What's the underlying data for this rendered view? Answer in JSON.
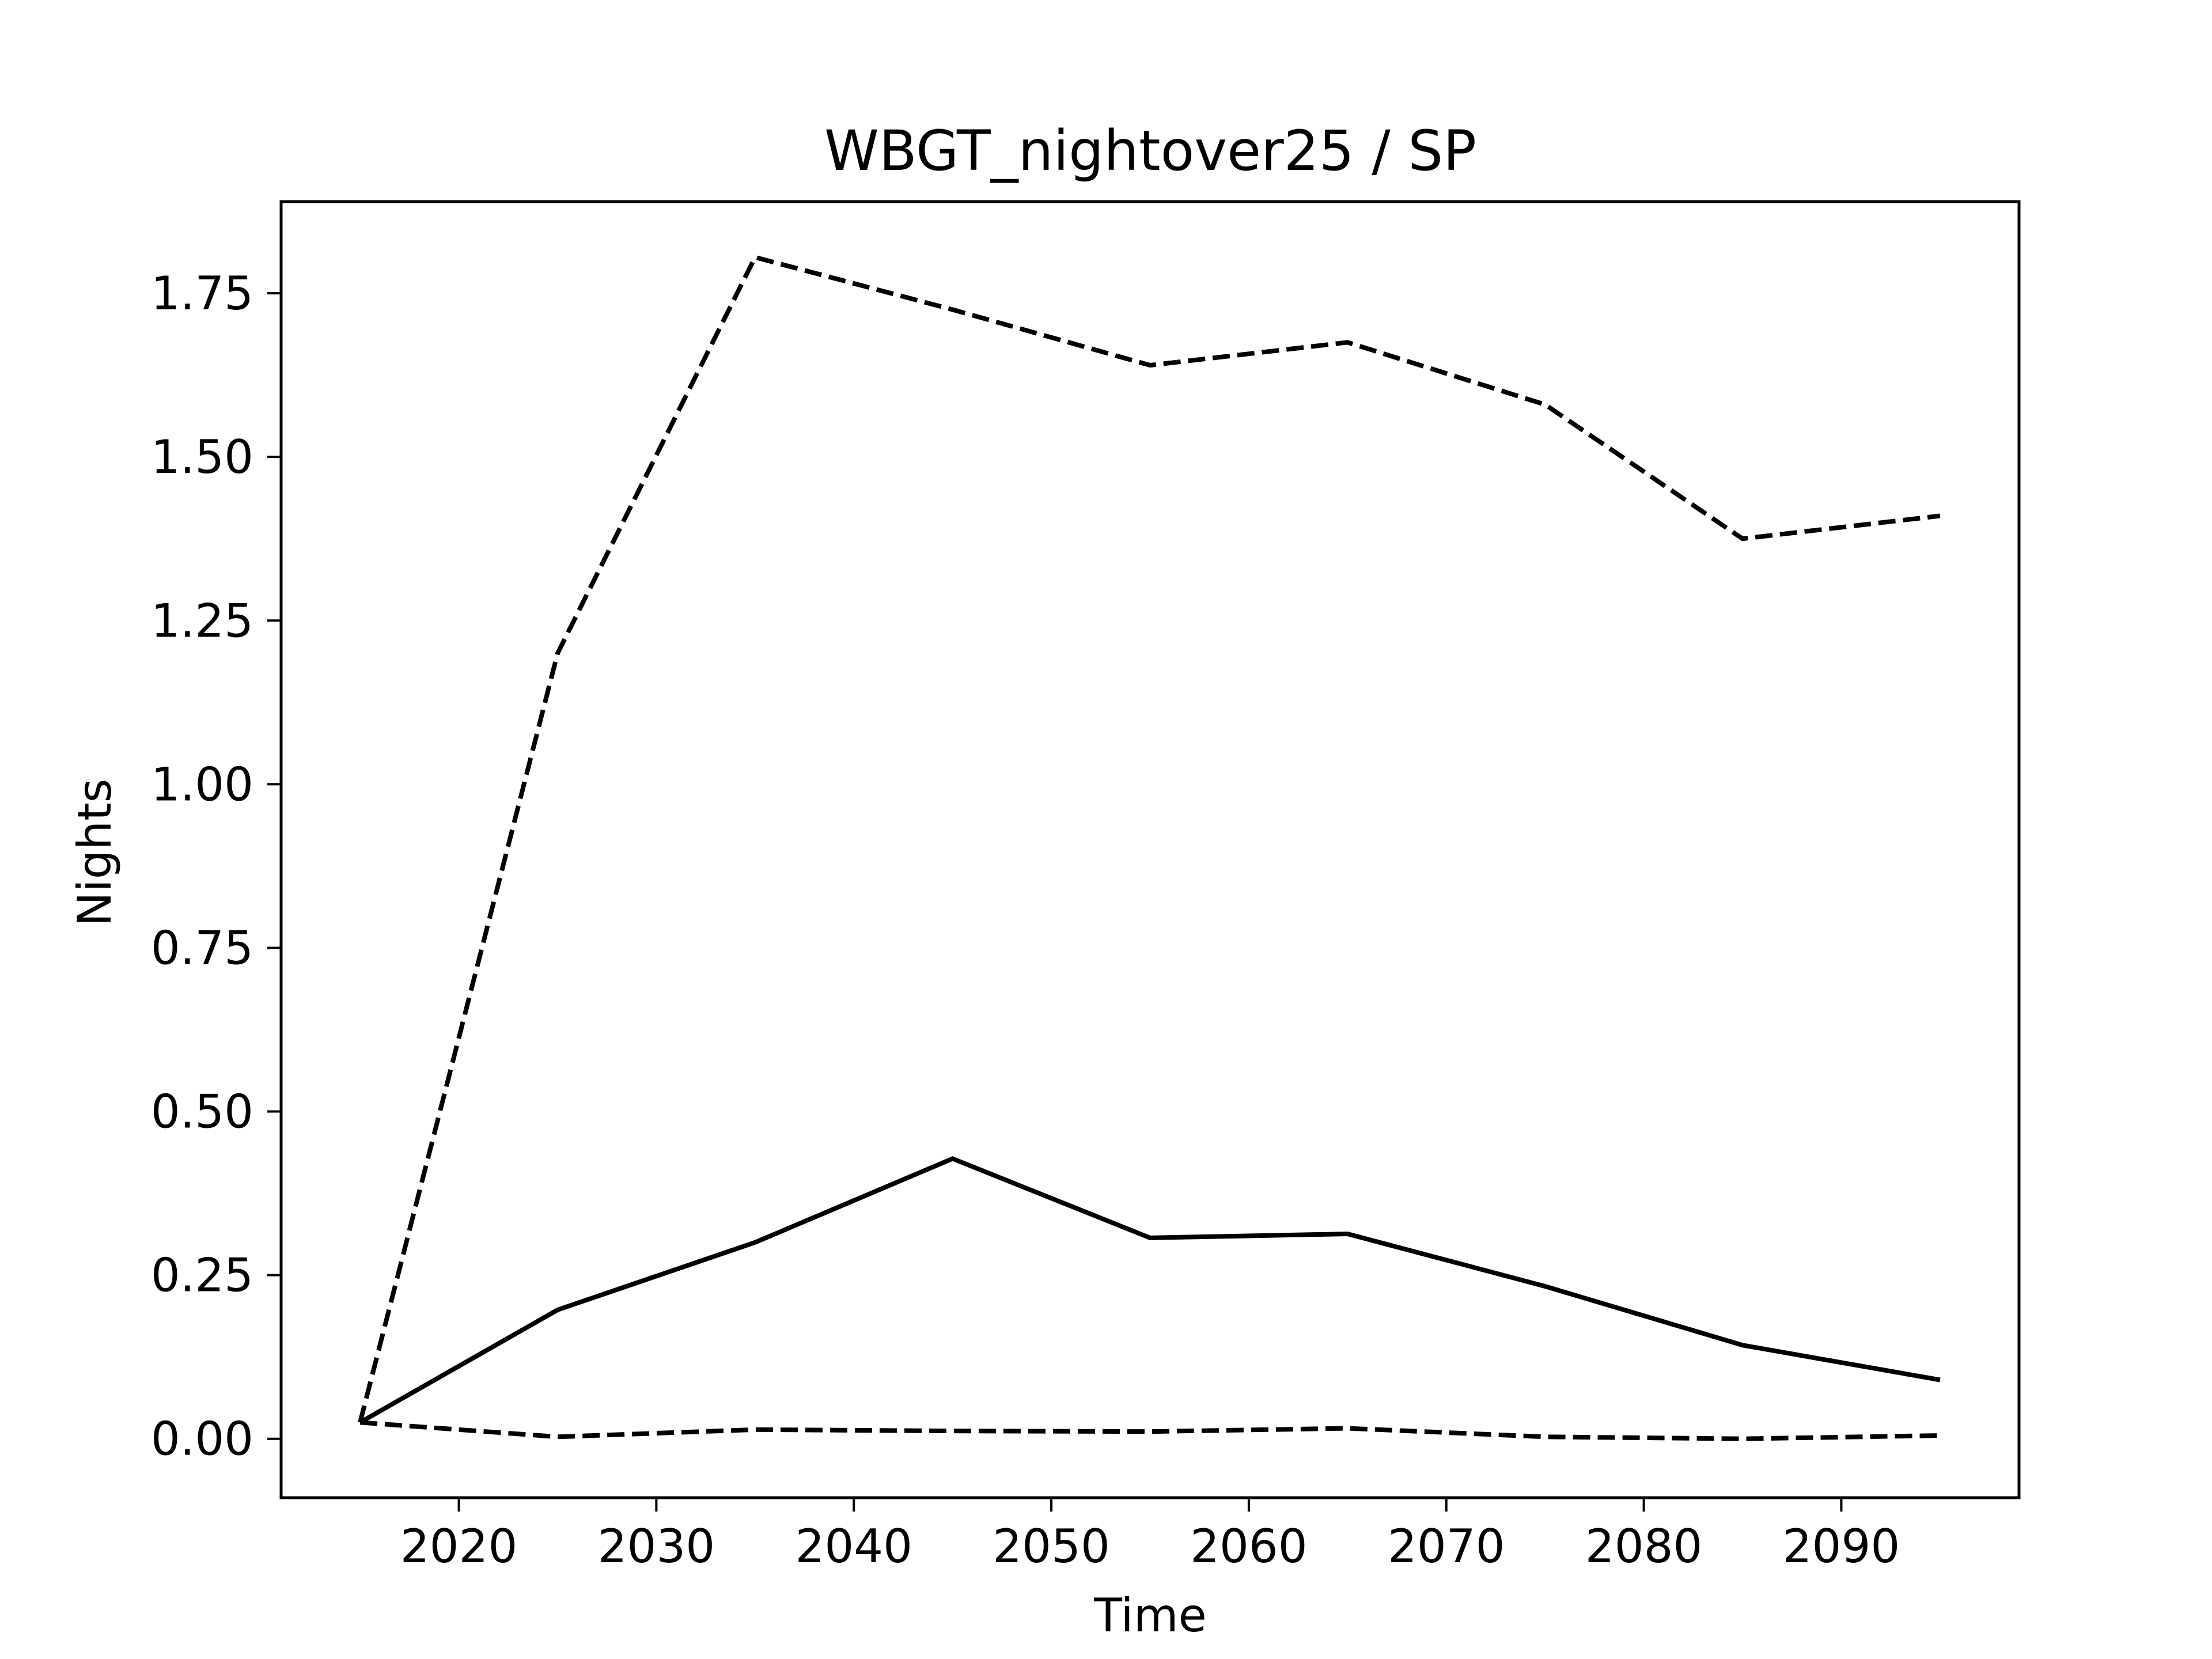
{
  "chart_data": {
    "type": "line",
    "title": "WBGT_nightover25 / SP",
    "xlabel": "Time",
    "ylabel": "Nights",
    "x": [
      2015,
      2025,
      2035,
      2045,
      2055,
      2065,
      2075,
      2085,
      2095
    ],
    "xlim": [
      2011,
      2099
    ],
    "ylim": [
      -0.09,
      1.89
    ],
    "xticks": [
      2020,
      2030,
      2040,
      2050,
      2060,
      2070,
      2080,
      2090
    ],
    "yticks": [
      0.0,
      0.25,
      0.5,
      0.75,
      1.0,
      1.25,
      1.5,
      1.75
    ],
    "ytick_labels": [
      "0.00",
      "0.25",
      "0.50",
      "0.75",
      "1.00",
      "1.25",
      "1.50",
      "1.75"
    ],
    "grid": false,
    "line_color": "#000000",
    "series": [
      {
        "style": "dashed",
        "values": [
          0.025,
          1.2,
          1.805,
          1.725,
          1.64,
          1.675,
          1.58,
          1.375,
          1.41
        ]
      },
      {
        "style": "solid",
        "values": [
          0.025,
          0.197,
          0.3,
          0.428,
          0.307,
          0.313,
          0.233,
          0.143,
          0.09
        ]
      },
      {
        "style": "dashed",
        "values": [
          0.025,
          0.003,
          0.014,
          0.012,
          0.011,
          0.016,
          0.003,
          0.0,
          0.005
        ]
      }
    ]
  }
}
